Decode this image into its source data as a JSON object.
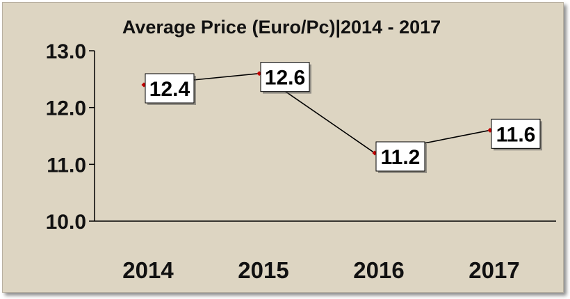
{
  "chart_data": {
    "type": "line",
    "title": "Average Price (Euro/Pc)|2014 - 2017",
    "categories": [
      "2014",
      "2015",
      "2016",
      "2017"
    ],
    "series": [
      {
        "values": [
          12.4,
          12.6,
          11.2,
          11.6
        ]
      }
    ],
    "data_labels": [
      "12.4",
      "12.6",
      "11.2",
      "11.6"
    ],
    "yticks": [
      "10.0",
      "11.0",
      "12.0",
      "13.0"
    ],
    "ylim": [
      10,
      13
    ],
    "grid": false,
    "legend": "none",
    "colors": {
      "background": "#ddd5c2",
      "line": "#000000",
      "marker": "#c00000",
      "label_box": "#ffffff"
    }
  }
}
